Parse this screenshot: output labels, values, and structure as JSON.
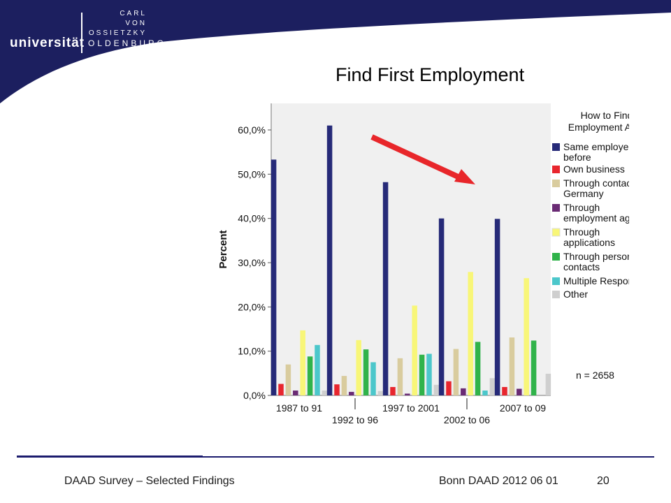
{
  "logo": {
    "line1": "CARL",
    "line2": "VON",
    "line3": "OSSIETZKY",
    "name": "universität",
    "city": "OLDENBURG"
  },
  "slide": {
    "title": "Find First Employment"
  },
  "footer": {
    "left": "DAAD Survey – Selected Findings",
    "right": "Bonn DAAD 2012 06 01",
    "page": "20"
  },
  "colors": {
    "header_band": "#1c1f5f",
    "footer_line": "#1c1c6e",
    "plot_bg": "#f0f0f0",
    "arrow": "#e8262a"
  },
  "chart_data": {
    "type": "bar",
    "title": "",
    "ylabel": "Percent",
    "xlabel": "",
    "ylim": [
      0,
      66
    ],
    "yticks": [
      0,
      10,
      20,
      30,
      40,
      50,
      60
    ],
    "ytick_labels": [
      "0,0%",
      "10,0%",
      "20,0%",
      "30,0%",
      "40,0%",
      "50,0%",
      "60,0%"
    ],
    "grid": false,
    "categories": [
      "1987 to 91",
      "1992 to 96",
      "1997 to 2001",
      "2002 to 06",
      "2007 to 09"
    ],
    "legend": {
      "title": "How to Find Employment After",
      "position": "right"
    },
    "series": [
      {
        "name": "Same employer as before",
        "color": "#262a78",
        "values": [
          53.3,
          61.0,
          48.2,
          40.0,
          39.9
        ]
      },
      {
        "name": "Own business",
        "color": "#e8262e",
        "values": [
          2.6,
          2.5,
          1.9,
          3.2,
          1.9
        ]
      },
      {
        "name": "Through contacts in Germany",
        "color": "#d9cc9e",
        "values": [
          7.0,
          4.4,
          8.4,
          10.5,
          13.1
        ]
      },
      {
        "name": "Through employment agency",
        "color": "#6a2b74",
        "values": [
          1.1,
          0.8,
          0.4,
          1.6,
          1.5
        ]
      },
      {
        "name": "Through applications",
        "color": "#f8f678",
        "values": [
          14.7,
          12.5,
          20.3,
          27.9,
          26.5
        ]
      },
      {
        "name": "Through personal contacts",
        "color": "#30b34a",
        "values": [
          8.8,
          10.4,
          9.2,
          12.1,
          12.4
        ]
      },
      {
        "name": "Multiple Response",
        "color": "#4cc7cb",
        "values": [
          11.4,
          7.5,
          9.4,
          1.1,
          0
        ]
      },
      {
        "name": "Other",
        "color": "#cfcfcf",
        "values": [
          1.1,
          1.0,
          2.4,
          3.9,
          4.9
        ]
      }
    ],
    "annotations": [
      "n = 2658"
    ]
  }
}
